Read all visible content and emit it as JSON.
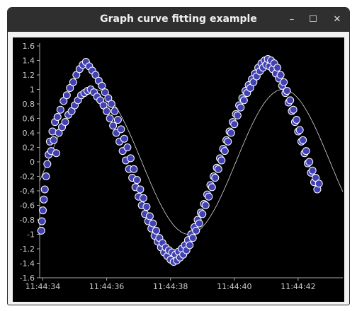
{
  "window": {
    "title": "Graph curve fitting example",
    "controls": {
      "minimize": "–",
      "maximize": "☐",
      "close": "✕"
    }
  },
  "colors": {
    "background": "#000000",
    "point_fill": "#4141b3",
    "point_stroke": "#ffffff",
    "axis": "#aaaaaa",
    "text": "#cccccc",
    "fit": "#ffffff"
  },
  "chart_data": {
    "type": "scatter",
    "title": "",
    "xlabel": "",
    "ylabel": "",
    "ylim": [
      -1.6,
      1.6
    ],
    "xlim": [
      33.9,
      43.4
    ],
    "x_ticks": [
      {
        "value": 34,
        "label": "11:44:34"
      },
      {
        "value": 36,
        "label": "11:44:36"
      },
      {
        "value": 38,
        "label": "11:44:38"
      },
      {
        "value": 40,
        "label": "11:44:40"
      },
      {
        "value": 42,
        "label": "11:44:42"
      }
    ],
    "y_ticks": [
      {
        "value": 1.6,
        "label": "1.6"
      },
      {
        "value": 1.4,
        "label": "1.4"
      },
      {
        "value": 1.2,
        "label": "1.2"
      },
      {
        "value": 1.0,
        "label": "1"
      },
      {
        "value": 0.8,
        "label": "0.8"
      },
      {
        "value": 0.6,
        "label": "0.6"
      },
      {
        "value": 0.4,
        "label": "0.4"
      },
      {
        "value": 0.2,
        "label": "0.2"
      },
      {
        "value": 0.0,
        "label": "0"
      },
      {
        "value": -0.2,
        "label": "-0.2"
      },
      {
        "value": -0.4,
        "label": "-0.4"
      },
      {
        "value": -0.6,
        "label": "-0.6"
      },
      {
        "value": -0.8,
        "label": "-0.8"
      },
      {
        "value": -1.0,
        "label": "-1"
      },
      {
        "value": -1.2,
        "label": "-1.2"
      },
      {
        "value": -1.4,
        "label": "-1.4"
      },
      {
        "value": -1.6,
        "label": "-1.6"
      }
    ],
    "grid": false,
    "series": [
      {
        "values": [
          [
            33.95,
            -0.95
          ],
          [
            33.97,
            -0.82
          ],
          [
            34.0,
            -0.67
          ],
          [
            34.03,
            -0.52
          ],
          [
            34.06,
            -0.38
          ],
          [
            34.1,
            -0.2
          ],
          [
            34.14,
            -0.03
          ],
          [
            34.18,
            0.1
          ],
          [
            34.22,
            0.28
          ],
          [
            34.26,
            0.15
          ],
          [
            34.3,
            0.42
          ],
          [
            34.34,
            0.3
          ],
          [
            34.38,
            0.55
          ],
          [
            34.42,
            0.12
          ],
          [
            34.46,
            0.62
          ],
          [
            34.5,
            0.4
          ],
          [
            34.55,
            0.72
          ],
          [
            34.6,
            0.48
          ],
          [
            34.65,
            0.84
          ],
          [
            34.7,
            0.55
          ],
          [
            34.75,
            0.92
          ],
          [
            34.8,
            0.65
          ],
          [
            34.85,
            1.02
          ],
          [
            34.9,
            0.7
          ],
          [
            34.95,
            1.1
          ],
          [
            35.0,
            0.78
          ],
          [
            35.05,
            1.2
          ],
          [
            35.1,
            0.85
          ],
          [
            35.15,
            1.28
          ],
          [
            35.2,
            0.92
          ],
          [
            35.25,
            1.34
          ],
          [
            35.3,
            0.95
          ],
          [
            35.35,
            1.38
          ],
          [
            35.4,
            0.98
          ],
          [
            35.45,
            1.32
          ],
          [
            35.5,
            1.0
          ],
          [
            35.55,
            1.26
          ],
          [
            35.6,
            0.96
          ],
          [
            35.65,
            1.2
          ],
          [
            35.7,
            0.9
          ],
          [
            35.75,
            1.12
          ],
          [
            35.8,
            0.85
          ],
          [
            35.85,
            1.05
          ],
          [
            35.9,
            0.78
          ],
          [
            35.95,
            0.96
          ],
          [
            36.0,
            0.7
          ],
          [
            36.05,
            0.88
          ],
          [
            36.1,
            0.6
          ],
          [
            36.15,
            0.8
          ],
          [
            36.2,
            0.5
          ],
          [
            36.25,
            0.7
          ],
          [
            36.3,
            0.4
          ],
          [
            36.35,
            0.58
          ],
          [
            36.4,
            0.28
          ],
          [
            36.45,
            0.45
          ],
          [
            36.5,
            0.15
          ],
          [
            36.55,
            0.32
          ],
          [
            36.6,
            0.02
          ],
          [
            36.65,
            0.2
          ],
          [
            36.7,
            -0.1
          ],
          [
            36.75,
            0.05
          ],
          [
            36.8,
            -0.22
          ],
          [
            36.85,
            -0.1
          ],
          [
            36.9,
            -0.35
          ],
          [
            36.95,
            -0.25
          ],
          [
            37.0,
            -0.48
          ],
          [
            37.05,
            -0.38
          ],
          [
            37.1,
            -0.6
          ],
          [
            37.15,
            -0.5
          ],
          [
            37.2,
            -0.72
          ],
          [
            37.25,
            -0.62
          ],
          [
            37.3,
            -0.82
          ],
          [
            37.35,
            -0.75
          ],
          [
            37.4,
            -0.92
          ],
          [
            37.45,
            -0.85
          ],
          [
            37.5,
            -1.02
          ],
          [
            37.55,
            -0.95
          ],
          [
            37.6,
            -1.1
          ],
          [
            37.65,
            -1.05
          ],
          [
            37.7,
            -1.18
          ],
          [
            37.75,
            -1.12
          ],
          [
            37.8,
            -1.25
          ],
          [
            37.85,
            -1.18
          ],
          [
            37.9,
            -1.3
          ],
          [
            37.95,
            -1.22
          ],
          [
            38.0,
            -1.35
          ],
          [
            38.05,
            -1.25
          ],
          [
            38.1,
            -1.38
          ],
          [
            38.15,
            -1.28
          ],
          [
            38.2,
            -1.36
          ],
          [
            38.25,
            -1.24
          ],
          [
            38.3,
            -1.32
          ],
          [
            38.35,
            -1.2
          ],
          [
            38.4,
            -1.28
          ],
          [
            38.45,
            -1.15
          ],
          [
            38.5,
            -1.22
          ],
          [
            38.55,
            -1.08
          ],
          [
            38.6,
            -1.15
          ],
          [
            38.65,
            -1.0
          ],
          [
            38.7,
            -1.05
          ],
          [
            38.75,
            -0.9
          ],
          [
            38.8,
            -0.95
          ],
          [
            38.85,
            -0.8
          ],
          [
            38.9,
            -0.85
          ],
          [
            38.95,
            -0.7
          ],
          [
            39.0,
            -0.72
          ],
          [
            39.05,
            -0.58
          ],
          [
            39.1,
            -0.6
          ],
          [
            39.15,
            -0.45
          ],
          [
            39.2,
            -0.48
          ],
          [
            39.25,
            -0.32
          ],
          [
            39.3,
            -0.35
          ],
          [
            39.35,
            -0.2
          ],
          [
            39.4,
            -0.22
          ],
          [
            39.45,
            -0.08
          ],
          [
            39.5,
            -0.1
          ],
          [
            39.55,
            0.05
          ],
          [
            39.6,
            0.02
          ],
          [
            39.65,
            0.18
          ],
          [
            39.7,
            0.15
          ],
          [
            39.75,
            0.3
          ],
          [
            39.8,
            0.28
          ],
          [
            39.85,
            0.42
          ],
          [
            39.9,
            0.4
          ],
          [
            39.95,
            0.55
          ],
          [
            40.0,
            0.52
          ],
          [
            40.05,
            0.66
          ],
          [
            40.1,
            0.64
          ],
          [
            40.15,
            0.78
          ],
          [
            40.2,
            0.75
          ],
          [
            40.25,
            0.88
          ],
          [
            40.3,
            0.85
          ],
          [
            40.35,
            0.98
          ],
          [
            40.4,
            0.95
          ],
          [
            40.45,
            1.06
          ],
          [
            40.5,
            1.02
          ],
          [
            40.55,
            1.14
          ],
          [
            40.6,
            1.1
          ],
          [
            40.65,
            1.22
          ],
          [
            40.7,
            1.18
          ],
          [
            40.75,
            1.3
          ],
          [
            40.8,
            1.25
          ],
          [
            40.85,
            1.36
          ],
          [
            40.9,
            1.3
          ],
          [
            40.95,
            1.4
          ],
          [
            41.0,
            1.34
          ],
          [
            41.05,
            1.42
          ],
          [
            41.1,
            1.32
          ],
          [
            41.15,
            1.4
          ],
          [
            41.2,
            1.28
          ],
          [
            41.25,
            1.36
          ],
          [
            41.3,
            1.22
          ],
          [
            41.35,
            1.3
          ],
          [
            41.4,
            1.15
          ],
          [
            41.45,
            1.2
          ],
          [
            41.5,
            1.05
          ],
          [
            41.55,
            1.1
          ],
          [
            41.6,
            0.95
          ],
          [
            41.65,
            0.98
          ],
          [
            41.7,
            0.82
          ],
          [
            41.75,
            0.85
          ],
          [
            41.8,
            0.7
          ],
          [
            41.85,
            0.72
          ],
          [
            41.9,
            0.55
          ],
          [
            41.95,
            0.58
          ],
          [
            42.0,
            0.42
          ],
          [
            42.05,
            0.44
          ],
          [
            42.1,
            0.28
          ],
          [
            42.15,
            0.3
          ],
          [
            42.2,
            0.12
          ],
          [
            42.25,
            0.15
          ],
          [
            42.3,
            -0.02
          ],
          [
            42.35,
            0.0
          ],
          [
            42.4,
            -0.15
          ],
          [
            42.45,
            -0.12
          ],
          [
            42.5,
            -0.28
          ],
          [
            42.55,
            -0.22
          ],
          [
            42.6,
            -0.38
          ],
          [
            42.65,
            -0.3
          ]
        ]
      }
    ],
    "fit_curve": {
      "type": "sine",
      "amplitude": 1.0,
      "period_s": 5.9,
      "x_zero": 34.15,
      "color": "#ffffff"
    }
  }
}
